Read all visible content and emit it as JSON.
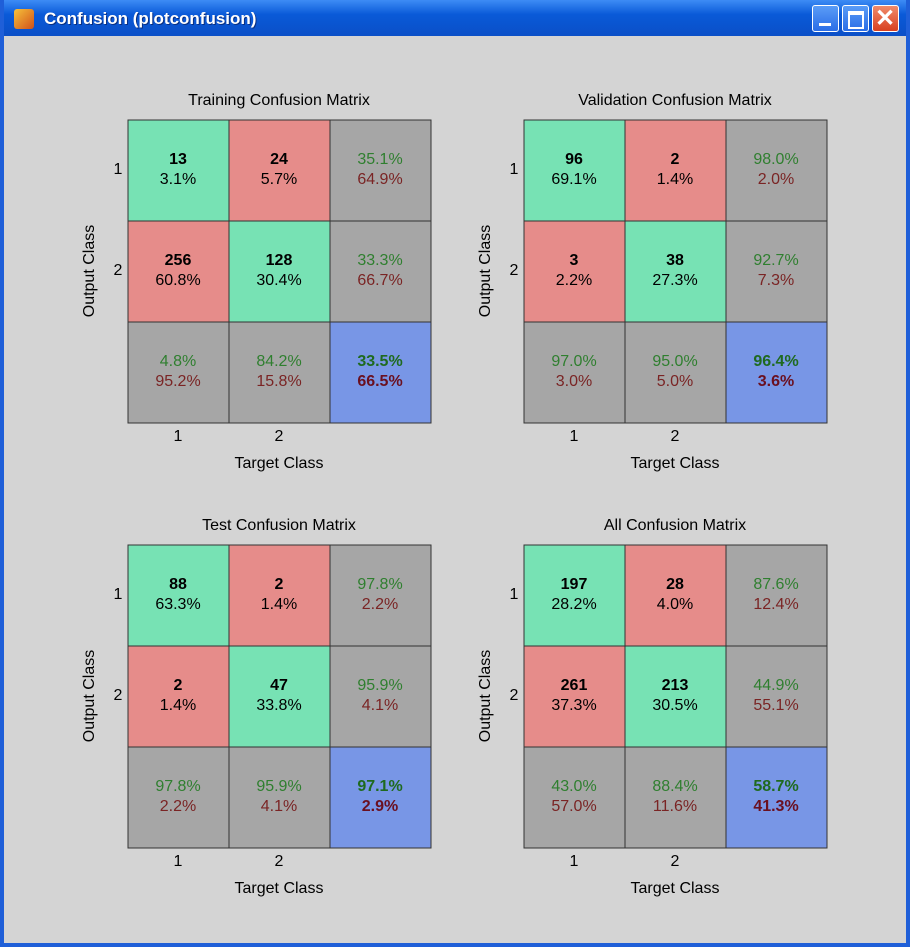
{
  "window": {
    "title": "Confusion (plotconfusion)"
  },
  "matrices": [
    {
      "title": "Training Confusion Matrix",
      "x_label": "Target Class",
      "y_label": "Output Class",
      "classes": [
        "1",
        "2"
      ],
      "cells": [
        [
          {
            "count": 13,
            "percent": "3.1%"
          },
          {
            "count": 24,
            "percent": "5.7%"
          }
        ],
        [
          {
            "count": 256,
            "percent": "60.8%"
          },
          {
            "count": 128,
            "percent": "30.4%"
          }
        ]
      ],
      "row_summary": [
        [
          "35.1%",
          "64.9%"
        ],
        [
          "33.3%",
          "66.7%"
        ]
      ],
      "col_summary": [
        [
          "4.8%",
          "95.2%"
        ],
        [
          "84.2%",
          "15.8%"
        ]
      ],
      "overall": [
        "33.5%",
        "66.5%"
      ]
    },
    {
      "title": "Validation Confusion Matrix",
      "x_label": "Target Class",
      "y_label": "Output Class",
      "classes": [
        "1",
        "2"
      ],
      "cells": [
        [
          {
            "count": 96,
            "percent": "69.1%"
          },
          {
            "count": 2,
            "percent": "1.4%"
          }
        ],
        [
          {
            "count": 3,
            "percent": "2.2%"
          },
          {
            "count": 38,
            "percent": "27.3%"
          }
        ]
      ],
      "row_summary": [
        [
          "98.0%",
          "2.0%"
        ],
        [
          "92.7%",
          "7.3%"
        ]
      ],
      "col_summary": [
        [
          "97.0%",
          "3.0%"
        ],
        [
          "95.0%",
          "5.0%"
        ]
      ],
      "overall": [
        "96.4%",
        "3.6%"
      ]
    },
    {
      "title": "Test Confusion Matrix",
      "x_label": "Target Class",
      "y_label": "Output Class",
      "classes": [
        "1",
        "2"
      ],
      "cells": [
        [
          {
            "count": 88,
            "percent": "63.3%"
          },
          {
            "count": 2,
            "percent": "1.4%"
          }
        ],
        [
          {
            "count": 2,
            "percent": "1.4%"
          },
          {
            "count": 47,
            "percent": "33.8%"
          }
        ]
      ],
      "row_summary": [
        [
          "97.8%",
          "2.2%"
        ],
        [
          "95.9%",
          "4.1%"
        ]
      ],
      "col_summary": [
        [
          "97.8%",
          "2.2%"
        ],
        [
          "95.9%",
          "4.1%"
        ]
      ],
      "overall": [
        "97.1%",
        "2.9%"
      ]
    },
    {
      "title": "All Confusion Matrix",
      "x_label": "Target Class",
      "y_label": "Output Class",
      "classes": [
        "1",
        "2"
      ],
      "cells": [
        [
          {
            "count": 197,
            "percent": "28.2%"
          },
          {
            "count": 28,
            "percent": "4.0%"
          }
        ],
        [
          {
            "count": 261,
            "percent": "37.3%"
          },
          {
            "count": 213,
            "percent": "30.5%"
          }
        ]
      ],
      "row_summary": [
        [
          "87.6%",
          "12.4%"
        ],
        [
          "44.9%",
          "55.1%"
        ]
      ],
      "col_summary": [
        [
          "43.0%",
          "57.0%"
        ],
        [
          "88.4%",
          "11.6%"
        ]
      ],
      "overall": [
        "58.7%",
        "41.3%"
      ]
    }
  ]
}
